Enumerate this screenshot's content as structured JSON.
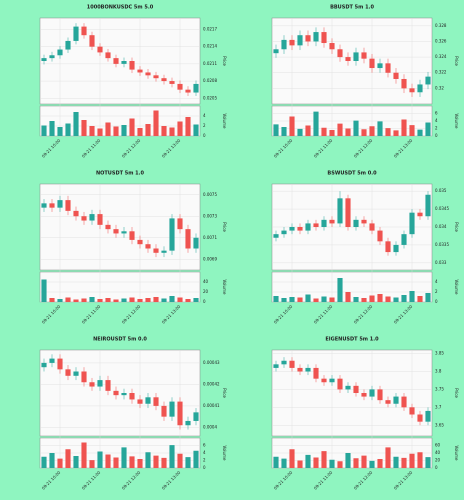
{
  "chart_data": [
    {
      "type": "candlestick",
      "title": "1000BONKUSDC 5m 5.0",
      "ylabel": "Price",
      "vlabel": "Volume",
      "categories": [
        null,
        null,
        "09-21 10:00",
        null,
        null,
        null,
        null,
        "09-21 11:00",
        null,
        null,
        null,
        null,
        "09-21 12:00",
        null,
        null,
        null,
        null,
        "09-21 13:00",
        null,
        null
      ],
      "open": [
        0.02115,
        0.0212,
        0.02125,
        0.02135,
        0.0215,
        0.02175,
        0.0216,
        0.0214,
        0.0213,
        0.0212,
        0.0211,
        0.02115,
        0.021,
        0.02095,
        0.0209,
        0.02085,
        0.0208,
        0.02075,
        0.02065,
        0.0206
      ],
      "high": [
        0.02126,
        0.02131,
        0.02141,
        0.02156,
        0.02181,
        0.02181,
        0.02166,
        0.02146,
        0.02136,
        0.02126,
        0.02121,
        0.02121,
        0.02106,
        0.02101,
        0.02096,
        0.02091,
        0.02086,
        0.02081,
        0.02071,
        0.02081
      ],
      "low": [
        0.02109,
        0.02114,
        0.02119,
        0.02129,
        0.02144,
        0.02154,
        0.02134,
        0.02124,
        0.02114,
        0.02104,
        0.02104,
        0.02094,
        0.02089,
        0.02084,
        0.02079,
        0.02074,
        0.02069,
        0.02059,
        0.02054,
        0.02054
      ],
      "close": [
        0.0212,
        0.02125,
        0.02135,
        0.0215,
        0.02175,
        0.0216,
        0.0214,
        0.0213,
        0.0212,
        0.0211,
        0.02115,
        0.021,
        0.02095,
        0.0209,
        0.02085,
        0.0208,
        0.02075,
        0.02065,
        0.0206,
        0.02075
      ],
      "volume": [
        2.1,
        3.0,
        1.8,
        2.5,
        4.8,
        3.2,
        2.0,
        1.5,
        2.7,
        1.9,
        2.2,
        3.5,
        1.6,
        2.4,
        5.1,
        2.0,
        1.7,
        2.9,
        3.8,
        2.3
      ],
      "ylim": [
        0.0204,
        0.0219
      ],
      "yticks": [
        0.0205,
        0.0208,
        0.0211,
        0.0214,
        0.0217
      ],
      "vlim": [
        0,
        6
      ],
      "vticks": [
        0,
        2,
        4
      ],
      "up_color": "#26a69a",
      "down_color": "#ef5350",
      "grid": true
    },
    {
      "type": "candlestick",
      "title": "BBUSDT 5m 1.0",
      "ylabel": "Price",
      "vlabel": "Volume",
      "categories": [
        null,
        null,
        "09-21 10:00",
        null,
        null,
        null,
        null,
        "09-21 11:00",
        null,
        null,
        null,
        null,
        "09-21 12:00",
        null,
        null,
        null,
        null,
        "09-21 13:00",
        null,
        null
      ],
      "open": [
        0.3245,
        0.325,
        0.3262,
        0.3255,
        0.3268,
        0.326,
        0.3272,
        0.3258,
        0.325,
        0.324,
        0.3235,
        0.3246,
        0.3238,
        0.3226,
        0.3232,
        0.322,
        0.3212,
        0.32,
        0.3195,
        0.3205
      ],
      "high": [
        0.3256,
        0.3268,
        0.3268,
        0.3274,
        0.3274,
        0.3278,
        0.3278,
        0.3264,
        0.3256,
        0.3246,
        0.3252,
        0.3252,
        0.3244,
        0.3238,
        0.3238,
        0.3226,
        0.3218,
        0.3206,
        0.3211,
        0.3221
      ],
      "low": [
        0.3239,
        0.3244,
        0.3249,
        0.3249,
        0.3254,
        0.3254,
        0.3252,
        0.3244,
        0.3234,
        0.3229,
        0.3229,
        0.3232,
        0.322,
        0.322,
        0.3214,
        0.3206,
        0.3194,
        0.3189,
        0.3189,
        0.3199
      ],
      "close": [
        0.325,
        0.3262,
        0.3255,
        0.3268,
        0.326,
        0.3272,
        0.3258,
        0.325,
        0.324,
        0.3235,
        0.3246,
        0.3238,
        0.3226,
        0.3232,
        0.322,
        0.3212,
        0.32,
        0.3195,
        0.3205,
        0.3215
      ],
      "volume": [
        3.1,
        2.4,
        5.2,
        1.9,
        2.8,
        6.5,
        2.2,
        1.6,
        3.3,
        2.0,
        4.1,
        1.8,
        2.6,
        3.9,
        2.1,
        1.5,
        4.4,
        2.9,
        1.7,
        3.6
      ],
      "ylim": [
        0.318,
        0.329
      ],
      "yticks": [
        0.32,
        0.322,
        0.324,
        0.326,
        0.328
      ],
      "vlim": [
        0,
        8
      ],
      "vticks": [
        0,
        2,
        4,
        6
      ],
      "up_color": "#26a69a",
      "down_color": "#ef5350",
      "grid": true
    },
    {
      "type": "candlestick",
      "title": "NOTUSDT 5m 1.0",
      "ylabel": "Price",
      "vlabel": "Volume",
      "categories": [
        null,
        null,
        "09-21 10:00",
        null,
        null,
        null,
        null,
        "09-21 11:00",
        null,
        null,
        null,
        null,
        "09-21 12:00",
        null,
        null,
        null,
        null,
        "09-21 13:00",
        null,
        null
      ],
      "open": [
        0.00738,
        0.00742,
        0.00738,
        0.00745,
        0.00735,
        0.0073,
        0.00726,
        0.00732,
        0.00722,
        0.00718,
        0.00714,
        0.00716,
        0.00708,
        0.00704,
        0.007,
        0.00696,
        0.00698,
        0.00728,
        0.00718,
        0.007
      ],
      "high": [
        0.00746,
        0.00746,
        0.00749,
        0.00749,
        0.00739,
        0.00734,
        0.00736,
        0.00736,
        0.00726,
        0.00722,
        0.0072,
        0.0072,
        0.00712,
        0.00708,
        0.00704,
        0.00702,
        0.00732,
        0.00732,
        0.00722,
        0.00714
      ],
      "low": [
        0.00734,
        0.00734,
        0.00734,
        0.00731,
        0.00726,
        0.00722,
        0.00722,
        0.00718,
        0.00714,
        0.0071,
        0.0071,
        0.00704,
        0.007,
        0.00696,
        0.00692,
        0.00692,
        0.00694,
        0.00714,
        0.00696,
        0.00696
      ],
      "close": [
        0.00742,
        0.00738,
        0.00745,
        0.00735,
        0.0073,
        0.00726,
        0.00732,
        0.00722,
        0.00718,
        0.00714,
        0.00716,
        0.00708,
        0.00704,
        0.007,
        0.00696,
        0.00698,
        0.00728,
        0.00718,
        0.007,
        0.0071
      ],
      "volume": [
        45,
        8,
        6,
        9,
        5,
        7,
        10,
        6,
        8,
        5,
        7,
        9,
        6,
        8,
        10,
        7,
        12,
        9,
        6,
        8
      ],
      "ylim": [
        0.0068,
        0.0076
      ],
      "yticks": [
        0.0069,
        0.0071,
        0.0073,
        0.0075
      ],
      "vlim": [
        0,
        60
      ],
      "vticks": [
        0,
        20,
        40
      ],
      "up_color": "#26a69a",
      "down_color": "#ef5350",
      "grid": true
    },
    {
      "type": "candlestick",
      "title": "BSWUSDT 5m 0.0",
      "ylabel": "Price",
      "vlabel": "Volume",
      "categories": [
        null,
        null,
        "09-21 10:00",
        null,
        null,
        null,
        null,
        "09-21 11:00",
        null,
        null,
        null,
        null,
        "09-21 12:00",
        null,
        null,
        null,
        null,
        "09-21 13:00",
        null,
        null
      ],
      "open": [
        0.0337,
        0.0338,
        0.0339,
        0.034,
        0.0339,
        0.0341,
        0.034,
        0.0342,
        0.0341,
        0.0348,
        0.034,
        0.0342,
        0.0341,
        0.0339,
        0.0336,
        0.0333,
        0.0335,
        0.0338,
        0.0344,
        0.0343
      ],
      "high": [
        0.0339,
        0.034,
        0.0341,
        0.0341,
        0.0342,
        0.0342,
        0.0343,
        0.0343,
        0.035,
        0.0349,
        0.0343,
        0.0343,
        0.0342,
        0.034,
        0.0337,
        0.0336,
        0.0339,
        0.0345,
        0.0345,
        0.035
      ],
      "low": [
        0.0336,
        0.0337,
        0.0338,
        0.0338,
        0.0338,
        0.0339,
        0.0339,
        0.034,
        0.034,
        0.0339,
        0.0339,
        0.034,
        0.0338,
        0.0335,
        0.0332,
        0.0332,
        0.0334,
        0.0337,
        0.0342,
        0.0342
      ],
      "close": [
        0.0338,
        0.0339,
        0.034,
        0.0339,
        0.0341,
        0.034,
        0.0342,
        0.0341,
        0.0348,
        0.034,
        0.0342,
        0.0341,
        0.0339,
        0.0336,
        0.0333,
        0.0335,
        0.0338,
        0.0344,
        0.0343,
        0.0349
      ],
      "volume": [
        1.2,
        0.8,
        1.0,
        0.9,
        1.5,
        0.7,
        1.1,
        0.9,
        4.8,
        2.0,
        1.0,
        0.8,
        1.3,
        1.6,
        1.1,
        0.9,
        1.4,
        2.2,
        1.2,
        1.8
      ],
      "ylim": [
        0.0328,
        0.0352
      ],
      "yticks": [
        0.033,
        0.0335,
        0.034,
        0.0345,
        0.035
      ],
      "vlim": [
        0,
        6
      ],
      "vticks": [
        0,
        2,
        4
      ],
      "up_color": "#26a69a",
      "down_color": "#ef5350",
      "grid": true
    },
    {
      "type": "candlestick",
      "title": "NEIROUSDT 5m 0.0",
      "ylabel": "Price",
      "vlabel": "Volume",
      "categories": [
        null,
        null,
        "09-21 10:00",
        null,
        null,
        null,
        null,
        "09-21 11:00",
        null,
        null,
        null,
        null,
        "09-21 12:00",
        null,
        null,
        null,
        null,
        "09-21 13:00",
        null,
        null
      ],
      "open": [
        0.000428,
        0.00043,
        0.000432,
        0.000427,
        0.000424,
        0.000426,
        0.000421,
        0.000419,
        0.000422,
        0.000417,
        0.000415,
        0.000416,
        0.000413,
        0.000411,
        0.000414,
        0.00041,
        0.000405,
        0.000412,
        0.000401,
        0.000403
      ],
      "high": [
        0.000432,
        0.000434,
        0.000434,
        0.000429,
        0.000428,
        0.000428,
        0.000423,
        0.000424,
        0.000424,
        0.000419,
        0.000418,
        0.000418,
        0.000415,
        0.000416,
        0.000416,
        0.000412,
        0.000414,
        0.000414,
        0.000405,
        0.000409
      ],
      "low": [
        0.000426,
        0.000428,
        0.000425,
        0.000422,
        0.000422,
        0.000419,
        0.000417,
        0.000417,
        0.000415,
        0.000413,
        0.000413,
        0.000411,
        0.000409,
        0.000409,
        0.000408,
        0.000403,
        0.000403,
        0.000399,
        0.000399,
        0.000401
      ],
      "close": [
        0.00043,
        0.000432,
        0.000427,
        0.000424,
        0.000426,
        0.000421,
        0.000419,
        0.000422,
        0.000417,
        0.000415,
        0.000416,
        0.000413,
        0.000411,
        0.000414,
        0.00041,
        0.000405,
        0.000412,
        0.000401,
        0.000403,
        0.000407
      ],
      "volume": [
        3,
        4,
        2.5,
        5,
        3.2,
        6.8,
        2.1,
        4.4,
        3.6,
        2.8,
        5.5,
        3.1,
        2.4,
        4.2,
        3.3,
        2.7,
        6.1,
        3.8,
        2.9,
        4.6
      ],
      "ylim": [
        0.000396,
        0.000436
      ],
      "yticks": [
        0.0004,
        0.00041,
        0.00042,
        0.00043
      ],
      "vlim": [
        0,
        8
      ],
      "vticks": [
        0,
        2,
        4,
        6
      ],
      "up_color": "#26a69a",
      "down_color": "#ef5350",
      "grid": true
    },
    {
      "type": "candlestick",
      "title": "EIGENUSDT 5m 1.0",
      "ylabel": "Price",
      "vlabel": "Volume",
      "categories": [
        null,
        null,
        "09-21 10:00",
        null,
        null,
        null,
        null,
        "09-21 11:00",
        null,
        null,
        null,
        null,
        "09-21 12:00",
        null,
        null,
        null,
        null,
        "09-21 13:00",
        null,
        null
      ],
      "open": [
        3.81,
        3.82,
        3.83,
        3.81,
        3.8,
        3.81,
        3.78,
        3.77,
        3.78,
        3.75,
        3.76,
        3.74,
        3.73,
        3.75,
        3.72,
        3.71,
        3.73,
        3.7,
        3.68,
        3.66
      ],
      "high": [
        3.83,
        3.84,
        3.84,
        3.82,
        3.82,
        3.82,
        3.79,
        3.79,
        3.79,
        3.77,
        3.77,
        3.75,
        3.76,
        3.76,
        3.73,
        3.74,
        3.74,
        3.71,
        3.69,
        3.7
      ],
      "low": [
        3.8,
        3.81,
        3.8,
        3.79,
        3.79,
        3.77,
        3.76,
        3.76,
        3.74,
        3.74,
        3.73,
        3.72,
        3.72,
        3.71,
        3.7,
        3.7,
        3.69,
        3.67,
        3.65,
        3.65
      ],
      "close": [
        3.82,
        3.83,
        3.81,
        3.8,
        3.81,
        3.78,
        3.77,
        3.78,
        3.75,
        3.76,
        3.74,
        3.73,
        3.75,
        3.72,
        3.71,
        3.73,
        3.7,
        3.68,
        3.66,
        3.69
      ],
      "volume": [
        30,
        25,
        50,
        20,
        35,
        28,
        45,
        22,
        18,
        40,
        26,
        33,
        19,
        24,
        55,
        30,
        27,
        38,
        42,
        29
      ],
      "ylim": [
        3.62,
        3.86
      ],
      "yticks": [
        3.65,
        3.7,
        3.75,
        3.8,
        3.85
      ],
      "vlim": [
        0,
        80
      ],
      "vticks": [
        0,
        20,
        40,
        60
      ],
      "up_color": "#26a69a",
      "down_color": "#ef5350",
      "grid": true
    }
  ]
}
